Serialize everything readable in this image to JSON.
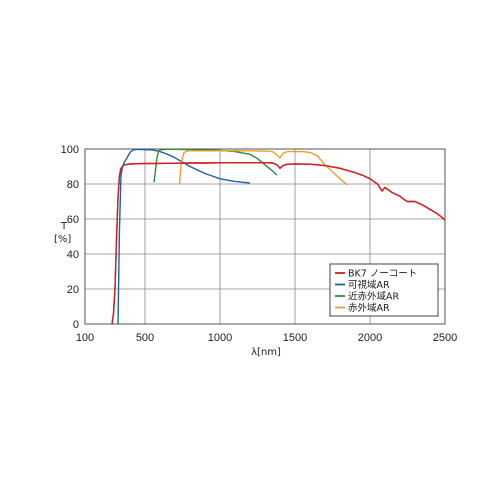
{
  "chart_data": {
    "type": "line",
    "ylabel": "T",
    "yunit": "[%]",
    "xlabel": "λ[nm]",
    "xlim": [
      100,
      2500
    ],
    "ylim": [
      0,
      100
    ],
    "xticks": [
      100,
      500,
      1000,
      1500,
      2000,
      2500
    ],
    "yticks": [
      0,
      20,
      40,
      60,
      80,
      100
    ],
    "grid": true,
    "legend_position": "lower-right",
    "series": [
      {
        "name": "BK7 ノーコート",
        "color": "#cc2222",
        "x": [
          280,
          290,
          300,
          310,
          320,
          330,
          340,
          350,
          360,
          380,
          400,
          450,
          500,
          600,
          700,
          800,
          900,
          1000,
          1100,
          1200,
          1300,
          1350,
          1380,
          1400,
          1420,
          1450,
          1500,
          1600,
          1700,
          1800,
          1900,
          1950,
          2000,
          2050,
          2080,
          2100,
          2150,
          2200,
          2230,
          2250,
          2300,
          2350,
          2400,
          2450,
          2500
        ],
        "y": [
          0,
          6,
          20,
          48,
          72,
          85,
          89,
          90,
          91,
          91.2,
          91.4,
          91.6,
          91.7,
          91.8,
          91.9,
          92,
          92,
          92.1,
          92.2,
          92.2,
          92.2,
          92,
          91,
          89,
          90.5,
          91.3,
          91.5,
          91.3,
          90.5,
          89,
          86.5,
          85,
          83,
          80,
          76,
          78,
          75,
          73,
          71,
          70,
          70,
          68,
          65.5,
          63,
          59.5
        ]
      },
      {
        "name": "可視域AR",
        "color": "#1f5fa8",
        "x": [
          320,
          330,
          340,
          350,
          360,
          380,
          400,
          420,
          450,
          500,
          550,
          600,
          650,
          700,
          750,
          800,
          850,
          900,
          950,
          1000,
          1100,
          1200
        ],
        "y": [
          0,
          55,
          85,
          90,
          92,
          95,
          98,
          99.5,
          99.8,
          99.6,
          99.5,
          98.5,
          97,
          95,
          92.5,
          90,
          88,
          86,
          84.5,
          83,
          81.5,
          80.5
        ]
      },
      {
        "name": "近赤外域AR",
        "color": "#2e8b3e",
        "x": [
          560,
          570,
          580,
          590,
          600,
          650,
          700,
          800,
          900,
          1000,
          1100,
          1200,
          1250,
          1300,
          1350,
          1380
        ],
        "y": [
          81,
          88,
          95,
          98.5,
          99.5,
          99.8,
          99.8,
          99.6,
          99.5,
          99.2,
          98.5,
          97,
          94.5,
          91,
          87.5,
          85
        ]
      },
      {
        "name": "赤外域AR",
        "color": "#e8a030",
        "x": [
          730,
          740,
          750,
          760,
          780,
          800,
          900,
          1000,
          1100,
          1200,
          1300,
          1350,
          1380,
          1400,
          1420,
          1450,
          1500,
          1550,
          1600,
          1650,
          1700,
          1750,
          1800,
          1850
        ],
        "y": [
          80,
          90,
          95,
          98,
          98.8,
          99,
          99,
          99,
          99,
          99,
          98.8,
          98.5,
          96.5,
          95,
          97.5,
          98.5,
          98.5,
          98.5,
          98,
          96,
          91,
          87,
          83,
          79.5
        ]
      }
    ]
  }
}
